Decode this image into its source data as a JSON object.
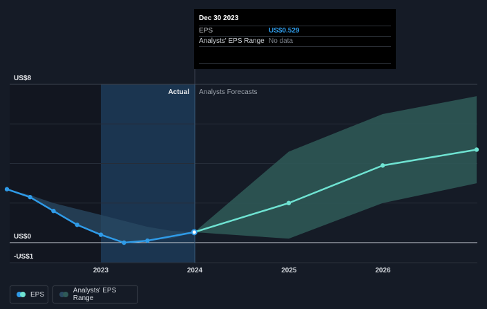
{
  "tooltip": {
    "date": "Dec 30 2023",
    "eps_label": "EPS",
    "eps_value": "US$0.529",
    "range_label": "Analysts' EPS Range",
    "range_value": "No data"
  },
  "sections": {
    "actual": "Actual",
    "forecast": "Analysts Forecasts"
  },
  "legend": {
    "eps": "EPS",
    "range": "Analysts' EPS Range"
  },
  "colors": {
    "eps": "#2f9be8",
    "forecast": "#6fe3d2",
    "range_past": "#2a4a63",
    "range_forecast": "#2f5a58",
    "highlight": "#1b3550"
  },
  "chart_data": {
    "type": "line",
    "ylabel_top": "US$8",
    "ylabel_zero": "US$0",
    "ylabel_bottom": "-US$1",
    "ylim": [
      -1,
      8
    ],
    "x_ticks": [
      "2023",
      "2024",
      "2025",
      "2026"
    ],
    "series": [
      {
        "name": "EPS",
        "points": [
          [
            "2022-01-01",
            2.7
          ],
          [
            "2022-04-01",
            2.3
          ],
          [
            "2022-07-01",
            1.6
          ],
          [
            "2022-10-01",
            0.9
          ],
          [
            "2023-01-01",
            0.4
          ],
          [
            "2023-04-01",
            0.0
          ],
          [
            "2023-07-01",
            0.1
          ],
          [
            "2023-12-30",
            0.529
          ]
        ]
      },
      {
        "name": "EPS forecast",
        "points": [
          [
            "2023-12-30",
            0.529
          ],
          [
            "2024-12-31",
            2.0
          ],
          [
            "2025-12-31",
            3.9
          ],
          [
            "2026-12-31",
            4.7
          ]
        ]
      }
    ],
    "range": {
      "x": [
        "2022-01-01",
        "2022-04-01",
        "2022-07-01",
        "2022-10-01",
        "2023-01-01",
        "2023-04-01",
        "2023-07-01",
        "2023-10-01",
        "2023-12-30",
        "2024-12-31",
        "2025-12-31",
        "2026-12-31"
      ],
      "low": [
        2.7,
        2.3,
        1.6,
        0.9,
        0.4,
        0.0,
        0.1,
        0.2,
        0.529,
        0.2,
        2.0,
        3.0
      ],
      "high": [
        2.7,
        2.4,
        2.0,
        1.7,
        1.4,
        1.1,
        0.8,
        0.6,
        0.529,
        4.6,
        6.5,
        7.4
      ]
    }
  }
}
